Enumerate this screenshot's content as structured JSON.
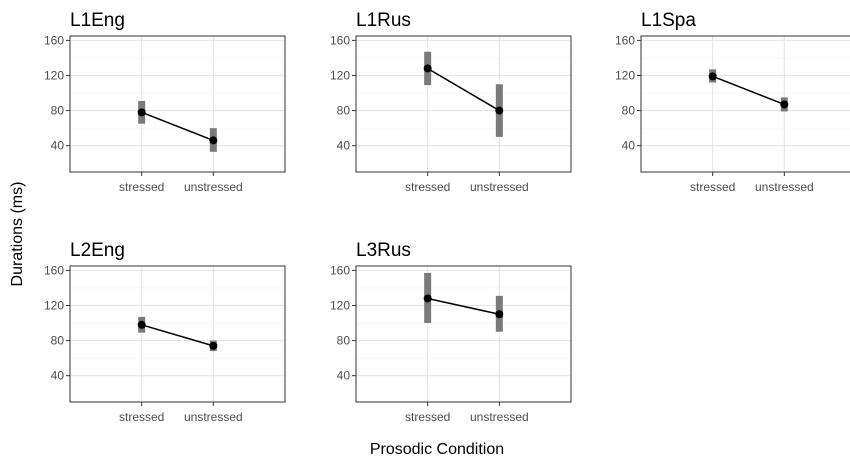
{
  "chart_data": {
    "type": "line",
    "xlabel": "Prosodic Condition",
    "ylabel": "Durations (ms)",
    "categories": [
      "stressed",
      "unstressed"
    ],
    "ylim": [
      10,
      165
    ],
    "yticks": [
      40,
      80,
      120,
      160
    ],
    "grid": true,
    "legend": "none",
    "colors": {
      "line": "#000000",
      "point": "#000000",
      "errorbar": "#7a7a7a",
      "border": "#333333"
    },
    "panels": [
      {
        "title": "L1Eng",
        "values": [
          78,
          46
        ],
        "errors": [
          [
            65,
            91
          ],
          [
            33,
            60
          ]
        ]
      },
      {
        "title": "L1Rus",
        "values": [
          128,
          80
        ],
        "errors": [
          [
            109,
            147
          ],
          [
            50,
            110
          ]
        ]
      },
      {
        "title": "L1Spa",
        "values": [
          119,
          87
        ],
        "errors": [
          [
            112,
            127
          ],
          [
            79,
            95
          ]
        ]
      },
      {
        "title": "L2Eng",
        "values": [
          98,
          74
        ],
        "errors": [
          [
            89,
            107
          ],
          [
            68,
            80
          ]
        ]
      },
      {
        "title": "L3Rus",
        "values": [
          128,
          110
        ],
        "errors": [
          [
            100,
            157
          ],
          [
            90,
            131
          ]
        ]
      }
    ]
  }
}
